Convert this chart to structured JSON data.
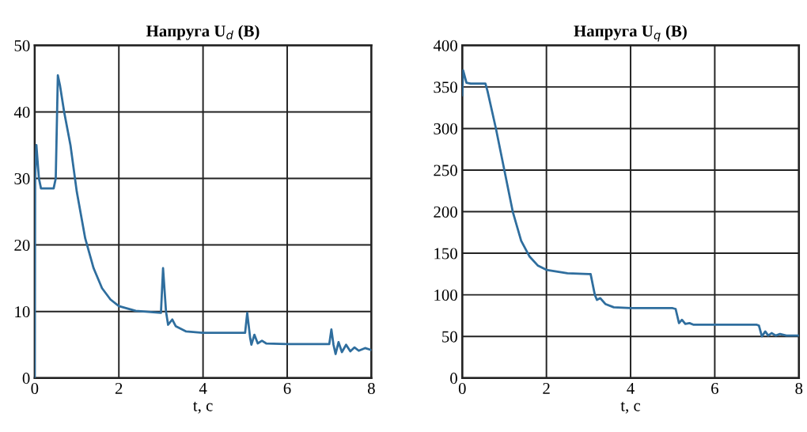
{
  "chart_data": [
    {
      "type": "line",
      "title": "Напруга U$_{d}$ (В)",
      "xlabel": "t, c",
      "xlim": [
        0,
        8
      ],
      "xticks": [
        0,
        2,
        4,
        6,
        8
      ],
      "ylim": [
        0,
        50
      ],
      "yticks": [
        0,
        10,
        20,
        30,
        40,
        50
      ],
      "grid": true,
      "series": [
        {
          "color": "#2f6e9e",
          "x": [
            0,
            0.01,
            0.04,
            0.1,
            0.15,
            0.45,
            0.5,
            0.55,
            0.6,
            0.7,
            0.85,
            1.0,
            1.2,
            1.4,
            1.6,
            1.8,
            2.0,
            2.4,
            3.0,
            3.05,
            3.12,
            3.17,
            3.27,
            3.35,
            3.6,
            4.0,
            5.0,
            5.05,
            5.12,
            5.15,
            5.22,
            5.3,
            5.4,
            5.5,
            6.0,
            7.0,
            7.05,
            7.1,
            7.15,
            7.22,
            7.3,
            7.4,
            7.5,
            7.6,
            7.7,
            7.85,
            8
          ],
          "values": [
            0,
            30,
            35,
            30,
            28.5,
            28.5,
            30,
            45.5,
            44,
            40,
            35,
            28,
            21,
            16.5,
            13.5,
            11.8,
            10.8,
            10.1,
            9.8,
            16.5,
            10,
            8,
            8.8,
            7.8,
            7,
            6.8,
            6.8,
            9.8,
            6,
            5,
            6.5,
            5.2,
            5.6,
            5.2,
            5.1,
            5.1,
            7.3,
            5,
            3.6,
            5.4,
            3.9,
            5,
            4,
            4.6,
            4.1,
            4.5,
            4.2
          ]
        }
      ]
    },
    {
      "type": "line",
      "title": "Напруга U$_{q}$ (В)",
      "xlabel": "t, c",
      "xlim": [
        0,
        8
      ],
      "xticks": [
        0,
        2,
        4,
        6,
        8
      ],
      "ylim": [
        0,
        400
      ],
      "yticks": [
        0,
        50,
        100,
        150,
        200,
        250,
        300,
        350,
        400
      ],
      "grid": true,
      "series": [
        {
          "color": "#2f6e9e",
          "x": [
            0,
            0.02,
            0.1,
            0.2,
            0.55,
            0.6,
            0.8,
            1.0,
            1.2,
            1.4,
            1.6,
            1.8,
            2.0,
            2.5,
            3.0,
            3.05,
            3.15,
            3.2,
            3.28,
            3.4,
            3.6,
            4.0,
            5.0,
            5.07,
            5.15,
            5.22,
            5.3,
            5.4,
            5.5,
            6.0,
            7.0,
            7.05,
            7.12,
            7.2,
            7.27,
            7.35,
            7.45,
            7.55,
            7.7,
            8
          ],
          "values": [
            340,
            370,
            355,
            354,
            354,
            345,
            300,
            250,
            200,
            165,
            146,
            135,
            130,
            126,
            125,
            125,
            100,
            94,
            96,
            89,
            85,
            84,
            84,
            83,
            66,
            70,
            65,
            66,
            64,
            64,
            64,
            63,
            50,
            56,
            51,
            54,
            51,
            53,
            51,
            51
          ]
        }
      ]
    }
  ]
}
